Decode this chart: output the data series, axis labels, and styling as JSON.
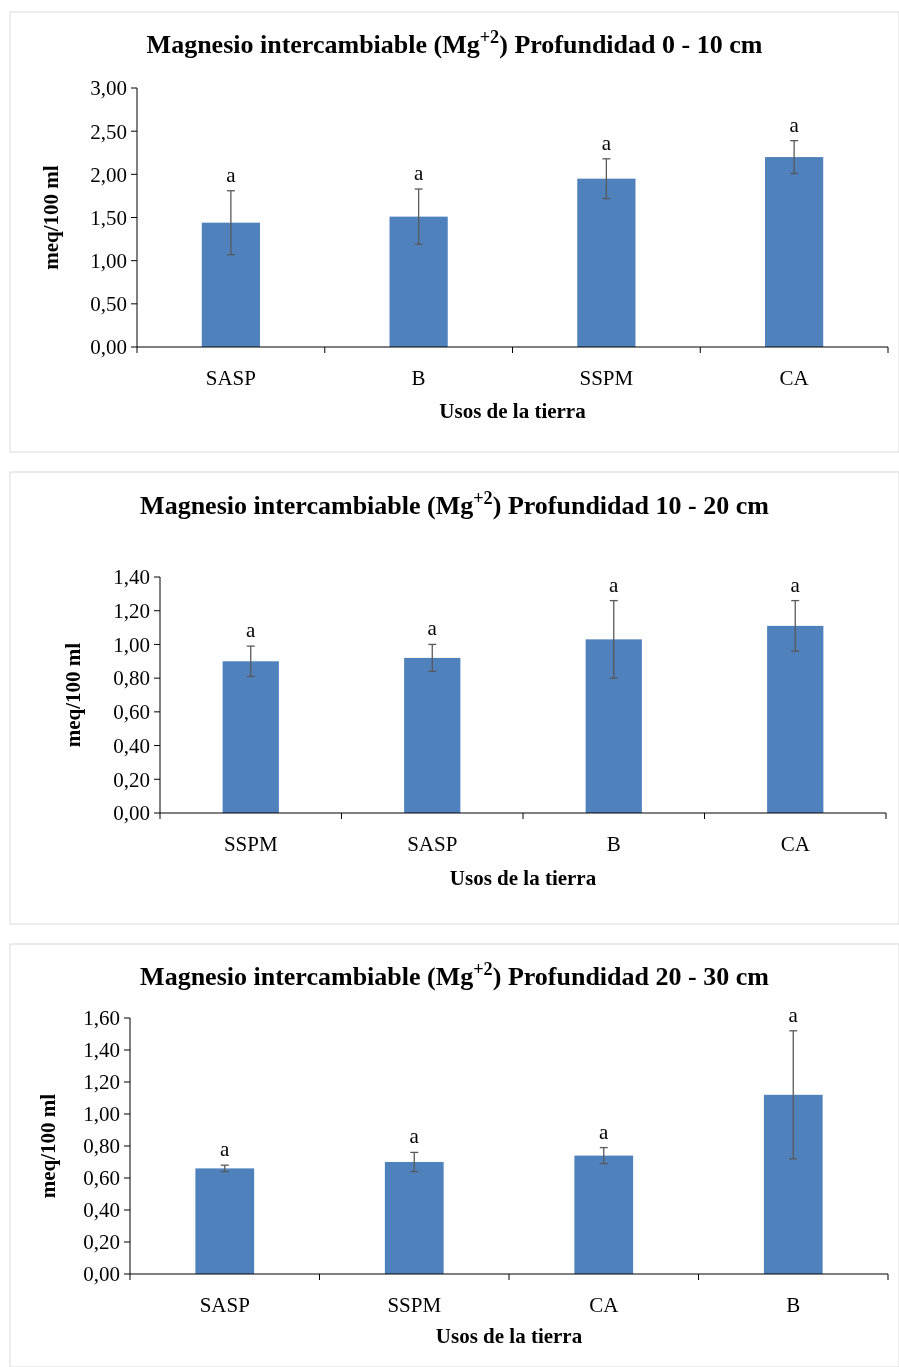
{
  "chart_data": [
    {
      "type": "bar",
      "title": "Magnesio intercambiable (Mg$^{+2}$) Profundidad 0 - 10 cm",
      "xlabel": "Usos de la tierra",
      "ylabel": "meq/100 ml",
      "categories": [
        "SASP",
        "B",
        "SSPM",
        "CA"
      ],
      "series": [
        {
          "color": "#4f81bd",
          "values": [
            1.44,
            1.51,
            1.95,
            2.2
          ],
          "errors": [
            0.37,
            0.32,
            0.23,
            0.19
          ]
        }
      ],
      "ylim": [
        0,
        3
      ],
      "yticks": [
        {
          "value": 0,
          "label": "0,00"
        },
        {
          "value": 0.5,
          "label": "0,50"
        },
        {
          "value": 1,
          "label": "1,00"
        },
        {
          "value": 1.5,
          "label": "1,50"
        },
        {
          "value": 2,
          "label": "2,00"
        },
        {
          "value": 2.5,
          "label": "2,50"
        },
        {
          "value": 3,
          "label": "3,00"
        }
      ],
      "annotations": [
        {
          "text": "a",
          "x": "SASP",
          "y": 1.81
        },
        {
          "text": "a",
          "x": "B",
          "y": 1.83
        },
        {
          "text": "a",
          "x": "SSPM",
          "y": 2.18
        },
        {
          "text": "a",
          "x": "CA",
          "y": 2.39
        }
      ]
    },
    {
      "type": "bar",
      "title": "Magnesio intercambiable (Mg$^{+2}$) Profundidad 10 - 20 cm",
      "xlabel": "Usos de la tierra",
      "ylabel": "meq/100 ml",
      "categories": [
        "SSPM",
        "SASP",
        "B",
        "CA"
      ],
      "series": [
        {
          "color": "#4f81bd",
          "values": [
            0.9,
            0.92,
            1.03,
            1.11
          ],
          "errors": [
            0.09,
            0.08,
            0.23,
            0.15
          ]
        }
      ],
      "ylim": [
        0,
        1.4
      ],
      "yticks": [
        {
          "value": 0,
          "label": "0,00"
        },
        {
          "value": 0.2,
          "label": "0,20"
        },
        {
          "value": 0.4,
          "label": "0,40"
        },
        {
          "value": 0.6,
          "label": "0,60"
        },
        {
          "value": 0.8,
          "label": "0,80"
        },
        {
          "value": 1,
          "label": "1,00"
        },
        {
          "value": 1.2,
          "label": "1,20"
        },
        {
          "value": 1.4,
          "label": "1,40"
        }
      ],
      "annotations": [
        {
          "text": "a",
          "x": "SSPM",
          "y": 0.99
        },
        {
          "text": "a",
          "x": "SASP",
          "y": 1.0
        },
        {
          "text": "a",
          "x": "B",
          "y": 1.26
        },
        {
          "text": "a",
          "x": "CA",
          "y": 1.26
        }
      ]
    },
    {
      "type": "bar",
      "title": "Magnesio intercambiable (Mg$^{+2}$) Profundidad 20 - 30 cm",
      "xlabel": "Usos de la tierra",
      "ylabel": "meq/100 ml",
      "categories": [
        "SASP",
        "SSPM",
        "CA",
        "B"
      ],
      "series": [
        {
          "color": "#4f81bd",
          "values": [
            0.66,
            0.7,
            0.74,
            1.12
          ],
          "errors": [
            0.02,
            0.06,
            0.05,
            0.4
          ]
        }
      ],
      "ylim": [
        0,
        1.6
      ],
      "yticks": [
        {
          "value": 0,
          "label": "0,00"
        },
        {
          "value": 0.2,
          "label": "0,20"
        },
        {
          "value": 0.4,
          "label": "0,40"
        },
        {
          "value": 0.6,
          "label": "0,60"
        },
        {
          "value": 0.8,
          "label": "0,80"
        },
        {
          "value": 1,
          "label": "1,00"
        },
        {
          "value": 1.2,
          "label": "1,20"
        },
        {
          "value": 1.4,
          "label": "1,40"
        },
        {
          "value": 1.6,
          "label": "1,60"
        }
      ],
      "annotations": [
        {
          "text": "a",
          "x": "SASP",
          "y": 0.68
        },
        {
          "text": "a",
          "x": "SSPM",
          "y": 0.76
        },
        {
          "text": "a",
          "x": "CA",
          "y": 0.79
        },
        {
          "text": "a",
          "x": "B",
          "y": 1.52
        }
      ]
    }
  ]
}
